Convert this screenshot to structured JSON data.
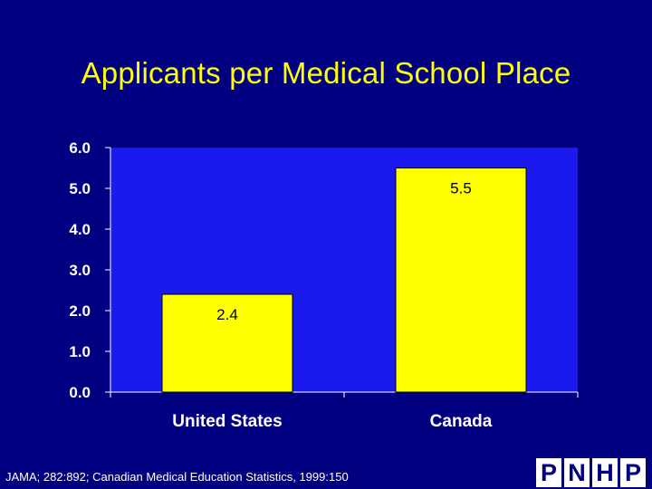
{
  "slide": {
    "title": "Applicants per Medical School Place",
    "source": "JAMA; 282:892; Canadian Medical Education Statistics, 1999:150",
    "logo_letters": [
      "P",
      "N",
      "H",
      "P"
    ]
  },
  "colors": {
    "background": "#000080",
    "plot_area": "#1a1aee",
    "bar": "#ffff00",
    "title": "#ffff00",
    "axis_text": "#ffffff",
    "bar_label": "#000000"
  },
  "chart_data": {
    "type": "bar",
    "title": "Applicants per Medical School Place",
    "xlabel": "",
    "ylabel": "",
    "categories": [
      "United States",
      "Canada"
    ],
    "values": [
      2.4,
      5.5
    ],
    "data_labels": [
      "2.4",
      "5.5"
    ],
    "ylim": [
      0,
      6
    ],
    "yticks": [
      0,
      1,
      2,
      3,
      4,
      5,
      6
    ],
    "ytick_labels": [
      "0.0",
      "1.0",
      "2.0",
      "3.0",
      "4.0",
      "5.0",
      "6.0"
    ],
    "grid": false,
    "legend": "none"
  }
}
